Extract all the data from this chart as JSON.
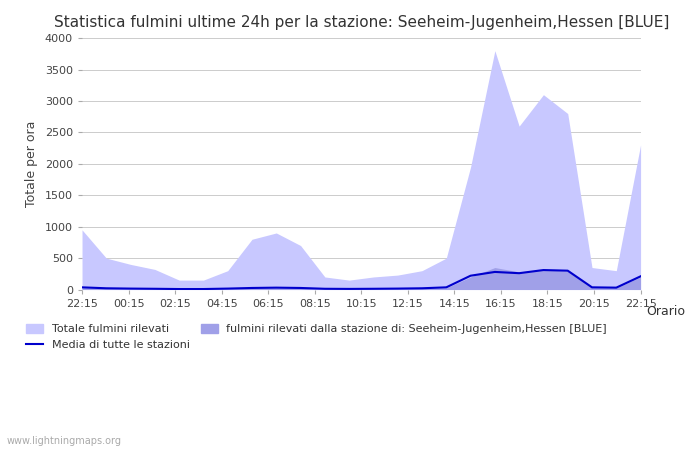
{
  "title": "Statistica fulmini ultime 24h per la stazione: Seeheim-Jugenheim,Hessen [BLUE]",
  "xlabel": "Orario",
  "ylabel": "Totale per ora",
  "xlim": [
    0,
    24
  ],
  "ylim": [
    0,
    4000
  ],
  "yticks": [
    0,
    500,
    1000,
    1500,
    2000,
    2500,
    3000,
    3500,
    4000
  ],
  "xtick_labels": [
    "22:15",
    "00:15",
    "02:15",
    "04:15",
    "06:15",
    "08:15",
    "10:15",
    "12:15",
    "14:15",
    "16:15",
    "18:15",
    "20:15",
    "22:15"
  ],
  "background_color": "#ffffff",
  "fill_color_total": "#c8c8ff",
  "fill_color_station": "#a0a0e8",
  "line_color_avg": "#0000cc",
  "watermark": "www.lightningmaps.org",
  "legend_total": "Totale fulmini rilevati",
  "legend_station": "fulmini rilevati dalla stazione di: Seeheim-Jugenheim,Hessen [BLUE]",
  "legend_avg": "Media di tutte le stazioni",
  "total_y": [
    950,
    500,
    400,
    320,
    150,
    150,
    300,
    800,
    900,
    700,
    200,
    150,
    200,
    230,
    300,
    500,
    1950,
    3800,
    2600,
    3100,
    2800,
    350,
    300,
    2300
  ],
  "station_y": [
    30,
    15,
    10,
    8,
    5,
    5,
    10,
    20,
    25,
    20,
    8,
    6,
    8,
    10,
    15,
    25,
    200,
    350,
    280,
    320,
    290,
    30,
    25,
    200
  ],
  "avg_y": [
    35,
    20,
    15,
    12,
    8,
    8,
    15,
    25,
    30,
    25,
    12,
    10,
    12,
    15,
    20,
    35,
    220,
    280,
    260,
    310,
    300,
    35,
    30,
    210
  ]
}
